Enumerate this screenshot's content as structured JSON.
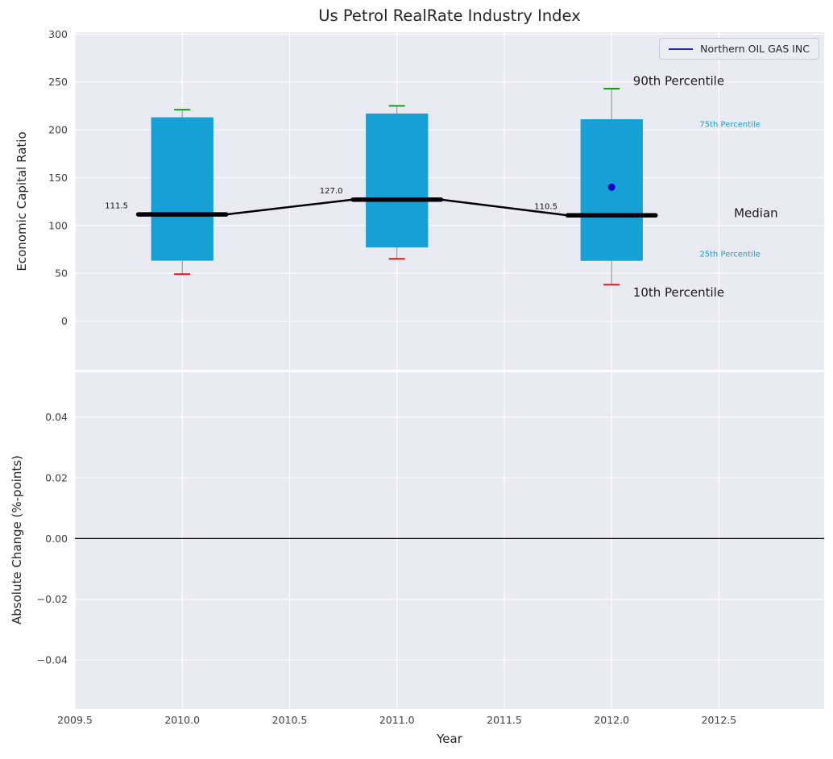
{
  "figure": {
    "background": "#ffffff",
    "plot_background": "#eaeaf2",
    "grid_color": "#ffffff",
    "tick_color": "#3f3f46",
    "text_color": "#262626"
  },
  "chart_data": [
    {
      "type": "boxplot",
      "title": "Us Petrol RealRate Industry Index",
      "ylabel": "Economic Capital Ratio",
      "xlabel": "",
      "grid": true,
      "xlim": [
        2009.5,
        2012.99
      ],
      "ylim": [
        -51,
        302
      ],
      "xticks": {
        "values": [
          2009.5,
          2010.0,
          2010.5,
          2011.0,
          2011.5,
          2012.0,
          2012.5
        ],
        "labels": [
          "2009.5",
          "2010.0",
          "2010.5",
          "2011.0",
          "2011.5",
          "2012.0",
          "2012.5"
        ]
      },
      "yticks": {
        "values": [
          0,
          50,
          100,
          150,
          200,
          250,
          300
        ],
        "labels": [
          "0",
          "50",
          "100",
          "150",
          "200",
          "250",
          "300"
        ]
      },
      "box_color": "#17a0d6",
      "cap_high_color": "#13a113",
      "cap_low_color": "#e01414",
      "whisker_color": "#8a8a8a",
      "median_line_color": "#000000",
      "box_half_width": 0.145,
      "median_half_width": 0.205,
      "boxes": [
        {
          "x": 2010,
          "label": "111.5",
          "median": 111.5,
          "q1": 63,
          "q3": 213,
          "whisker_low": 49,
          "whisker_high": 221
        },
        {
          "x": 2011,
          "label": "127.0",
          "median": 127.0,
          "q1": 77,
          "q3": 217,
          "whisker_low": 65,
          "whisker_high": 225
        },
        {
          "x": 2012,
          "label": "110.5",
          "median": 110.5,
          "q1": 63,
          "q3": 211,
          "whisker_low": 38,
          "whisker_high": 243
        }
      ],
      "company_point": {
        "series": "Northern OIL GAS INC",
        "x": 2012,
        "y": 140,
        "color": "#0000cc"
      },
      "legend": {
        "label": "Northern OIL GAS INC",
        "line_color": "#2222aa",
        "position": "upper right"
      },
      "annotations": [
        {
          "text": "90th Percentile",
          "x": 2012.1,
          "y": 247.0,
          "color": "#1a1a1a",
          "size": 15
        },
        {
          "text": "75th Percentile",
          "x": 2012.41,
          "y": 203.0,
          "color": "#1a9ecd",
          "size": 10
        },
        {
          "text": "Median",
          "x": 2012.57,
          "y": 108.5,
          "color": "#1a1a1a",
          "size": 15
        },
        {
          "text": "25th Percentile",
          "x": 2012.41,
          "y": 67.5,
          "color": "#1a9ecd",
          "size": 10
        },
        {
          "text": "10th Percentile",
          "x": 2012.1,
          "y": 25.5,
          "color": "#1a1a1a",
          "size": 15
        }
      ]
    },
    {
      "type": "line",
      "title": "",
      "ylabel": "Absolute Change (%-points)",
      "xlabel": "Year",
      "grid": true,
      "xlim": [
        2009.5,
        2012.99
      ],
      "ylim": [
        -0.0562,
        0.0548
      ],
      "zero_line": 0.0,
      "xticks": {
        "values": [
          2009.5,
          2010.0,
          2010.5,
          2011.0,
          2011.5,
          2012.0,
          2012.5
        ],
        "labels": [
          "2009.5",
          "2010.0",
          "2010.5",
          "2011.0",
          "2011.5",
          "2012.0",
          "2012.5"
        ]
      },
      "yticks": {
        "values": [
          -0.04,
          -0.02,
          0.0,
          0.02,
          0.04
        ],
        "labels": [
          "−0.04",
          "−0.02",
          "0.00",
          "0.02",
          "0.04"
        ]
      },
      "series": []
    }
  ]
}
